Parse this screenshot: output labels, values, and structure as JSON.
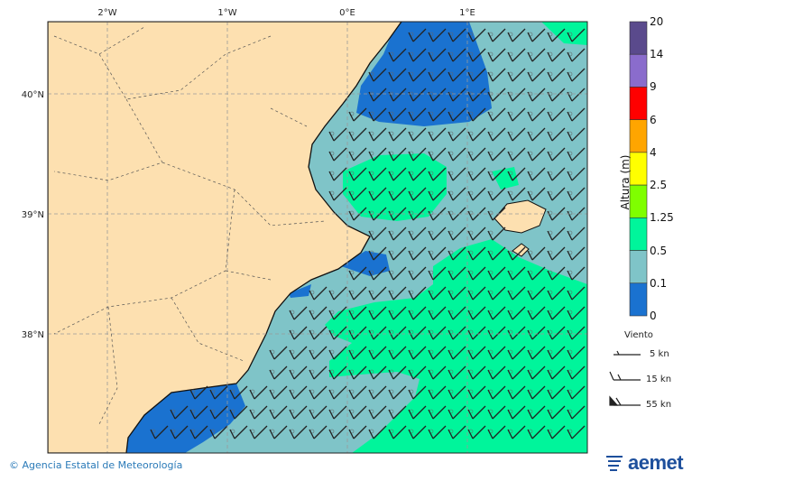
{
  "map": {
    "lon_ticks": [
      "2°W",
      "1°W",
      "0°E",
      "1°E"
    ],
    "lat_ticks": [
      "40°N",
      "39°N",
      "38°N"
    ],
    "colors": {
      "land": "#fde0b0",
      "sea_0_0.1": "#1a72d0",
      "sea_0.1_0.5": "#7fc4c8",
      "sea_0.5_1.25": "#00f59b"
    }
  },
  "colorbar": {
    "title": "Altura (m)",
    "labels": [
      "20",
      "14",
      "9",
      "6",
      "4",
      "2.5",
      "1.25",
      "0.5",
      "0.1",
      "0"
    ],
    "colors": [
      "#5a4a8c",
      "#8a6ccc",
      "#ff0000",
      "#ffa500",
      "#ffff00",
      "#7fff00",
      "#00f59b",
      "#7fc4c8",
      "#1a72d0"
    ]
  },
  "wind_legend": {
    "title": "Viento",
    "items": [
      {
        "label": "5 kn"
      },
      {
        "label": "15 kn"
      },
      {
        "label": "55 kn"
      }
    ]
  },
  "footer": {
    "credit": "© Agencia Estatal de Meteorología",
    "logo_text": "aemet"
  }
}
